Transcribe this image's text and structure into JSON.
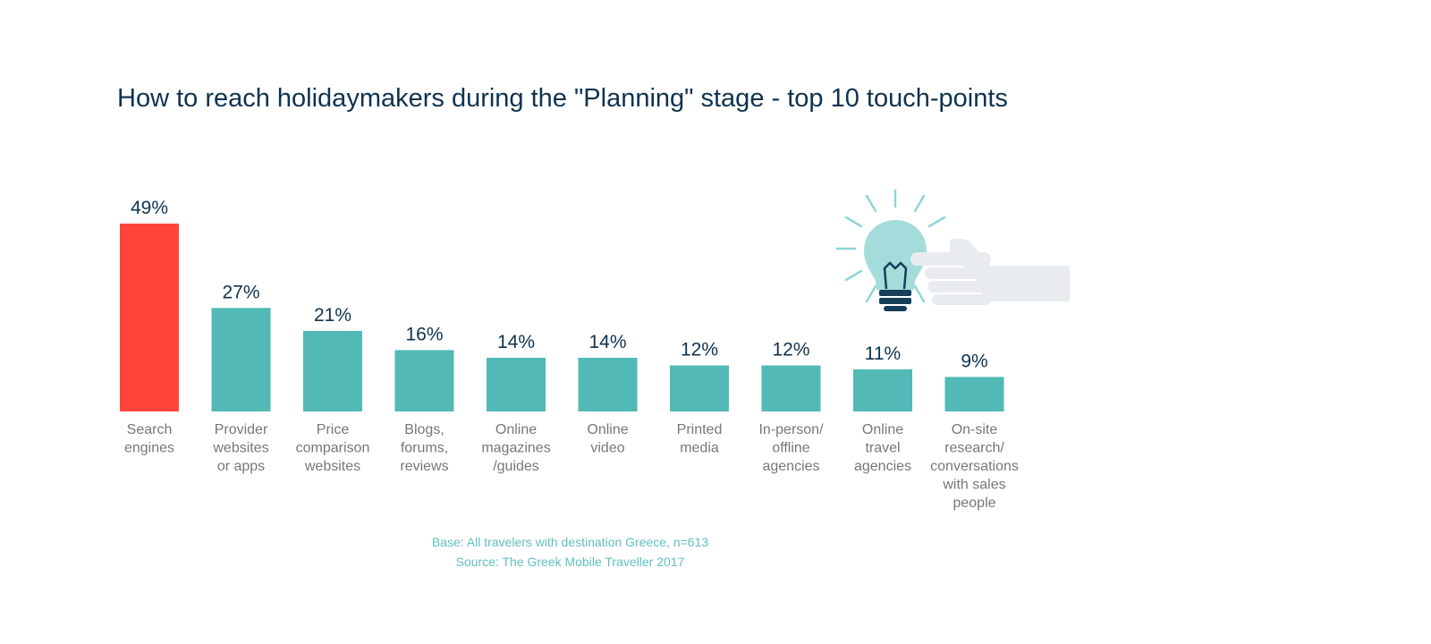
{
  "title": "How to reach holidaymakers during the \"Planning\" stage - top 10 touch-points",
  "footnote": {
    "base": "Base: All travelers with destination Greece, n=613",
    "source": "Source: The Greek Mobile Traveller 2017"
  },
  "illustration": {
    "icon": "lightbulb-with-pointing-hand-icon"
  },
  "colors": {
    "highlight": "#ff4438",
    "bar": "#52b9b6",
    "value_label": "#0f3350",
    "category_label": "#777777",
    "footnote": "#62bfbf"
  },
  "chart_data": {
    "type": "bar",
    "title": "How to reach holidaymakers during the \"Planning\" stage - top 10 touch-points",
    "unit": "%",
    "categories": [
      [
        "Search",
        "engines"
      ],
      [
        "Provider",
        "websites",
        "or apps"
      ],
      [
        "Price",
        "comparison",
        "websites"
      ],
      [
        "Blogs,",
        "forums,",
        "reviews"
      ],
      [
        "Online",
        "magazines",
        "/guides"
      ],
      [
        "Online",
        "video"
      ],
      [
        "Printed",
        "media"
      ],
      [
        "In-person/",
        "offline",
        "agencies"
      ],
      [
        "Online",
        "travel",
        "agencies"
      ],
      [
        "On-site",
        "research/",
        "conversations",
        "with sales",
        "people"
      ]
    ],
    "values": [
      49,
      27,
      21,
      16,
      14,
      14,
      12,
      12,
      11,
      9
    ],
    "value_labels": [
      "49%",
      "27%",
      "21%",
      "16%",
      "14%",
      "14%",
      "12%",
      "12%",
      "11%",
      "9%"
    ],
    "highlight_index": 0,
    "ylim": [
      0,
      49
    ],
    "grid": false,
    "legend": "none"
  }
}
